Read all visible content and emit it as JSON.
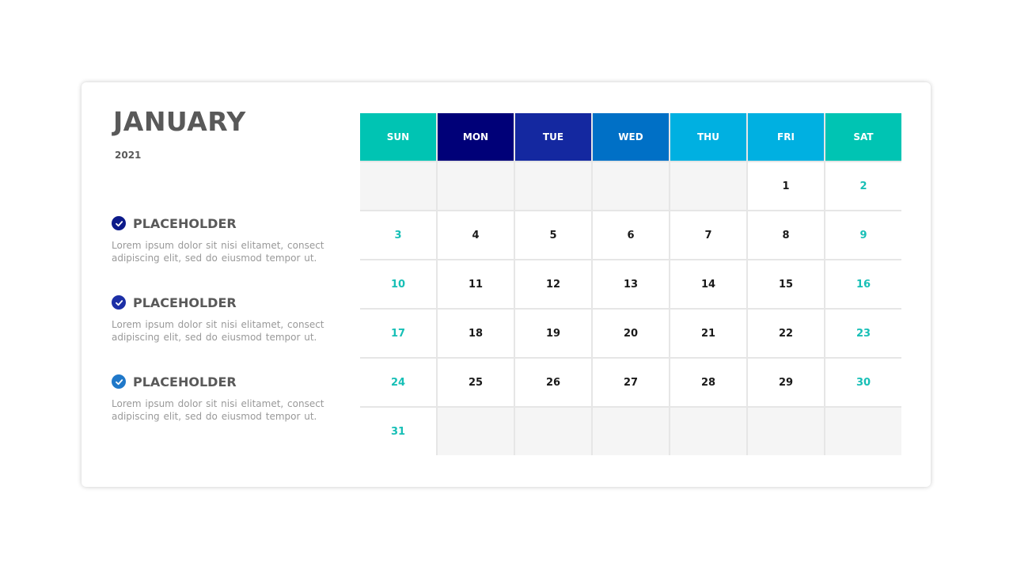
{
  "header": {
    "month": "JANUARY",
    "year": "2021"
  },
  "items": [
    {
      "title": "PLACEHOLDER",
      "text": "Lorem ipsum dolor sit nisi elitamet, consect adipiscing elit, sed do eiusmod tempor ut.",
      "color": "#0c1a8a"
    },
    {
      "title": "PLACEHOLDER",
      "text": "Lorem ipsum dolor sit nisi elitamet, consect adipiscing elit, sed do eiusmod tempor ut.",
      "color": "#1c2fa6"
    },
    {
      "title": "PLACEHOLDER",
      "text": "Lorem ipsum dolor sit nisi elitamet, consect adipiscing elit, sed do eiusmod tempor ut.",
      "color": "#1f78c9"
    }
  ],
  "calendar": {
    "days": [
      {
        "label": "SUN",
        "color": "#00c4b3"
      },
      {
        "label": "MON",
        "color": "#000078"
      },
      {
        "label": "TUE",
        "color": "#1428a0"
      },
      {
        "label": "WED",
        "color": "#0070c6"
      },
      {
        "label": "THU",
        "color": "#00b0e1"
      },
      {
        "label": "FRI",
        "color": "#00b0e1"
      },
      {
        "label": "SAT",
        "color": "#00c4b3"
      }
    ],
    "weeks": [
      [
        "",
        "",
        "",
        "",
        "",
        "1",
        "2"
      ],
      [
        "3",
        "4",
        "5",
        "6",
        "7",
        "8",
        "9"
      ],
      [
        "10",
        "11",
        "12",
        "13",
        "14",
        "15",
        "16"
      ],
      [
        "17",
        "18",
        "19",
        "20",
        "21",
        "22",
        "23"
      ],
      [
        "24",
        "25",
        "26",
        "27",
        "28",
        "29",
        "30"
      ],
      [
        "31",
        "",
        "",
        "",
        "",
        "",
        ""
      ]
    ],
    "weekend_color": "#17bfb6"
  },
  "icons": {
    "item_icon": "check-circle-icon"
  }
}
